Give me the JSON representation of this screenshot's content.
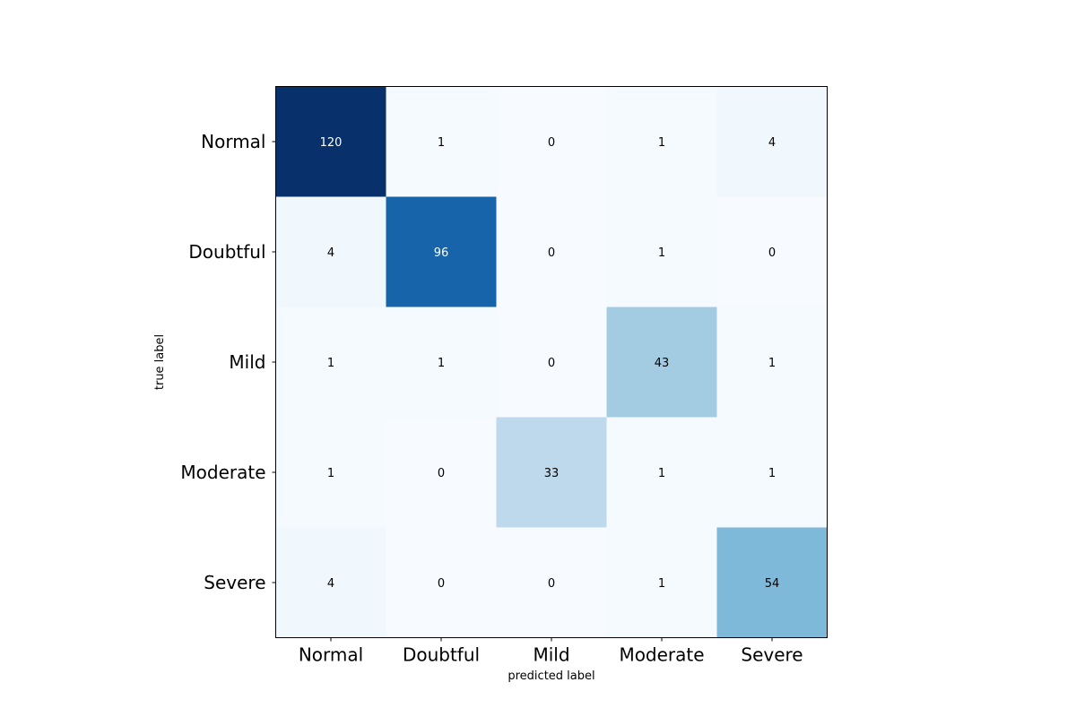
{
  "chart_data": {
    "type": "heatmap",
    "title": "",
    "xlabel": "predicted label",
    "ylabel": "true label",
    "x_categories": [
      "Normal",
      "Doubtful",
      "Mild",
      "Moderate",
      "Severe"
    ],
    "y_categories": [
      "Normal",
      "Doubtful",
      "Mild",
      "Moderate",
      "Severe"
    ],
    "values": [
      [
        120,
        1,
        0,
        1,
        4
      ],
      [
        4,
        96,
        0,
        1,
        0
      ],
      [
        1,
        1,
        0,
        43,
        1
      ],
      [
        1,
        0,
        33,
        1,
        1
      ],
      [
        4,
        0,
        0,
        1,
        54
      ]
    ],
    "colormap": "Blues",
    "color_min": "#f7fbff",
    "color_max": "#08306b",
    "grid": false,
    "legend": "none"
  }
}
